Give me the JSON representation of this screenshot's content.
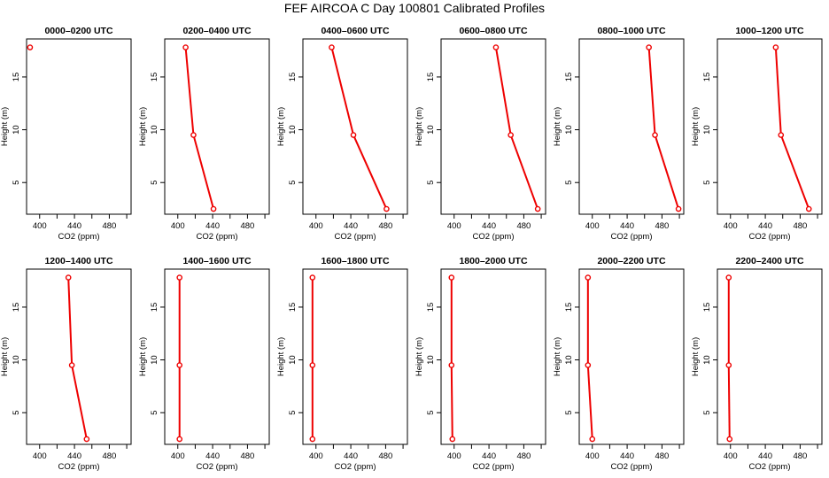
{
  "chart_data": {
    "type": "line",
    "title": "FEF AIRCOA C  Day 100801  Calibrated Profiles",
    "xlabel": "CO2 (ppm)",
    "ylabel": "Height (m)",
    "xlim": [
      385,
      505
    ],
    "ylim": [
      2,
      18.6
    ],
    "xticks": [
      400,
      440,
      480
    ],
    "yticks": [
      5,
      10,
      15
    ],
    "marker_color": "#ee0000",
    "line_color": "#ee0000",
    "heights": [
      17.8,
      9.5,
      2.5
    ],
    "panels": [
      {
        "title": "0000–0200 UTC",
        "co2": [
          389,
          null,
          null
        ]
      },
      {
        "title": "0200–0400 UTC",
        "co2": [
          409,
          418,
          441
        ]
      },
      {
        "title": "0400–0600 UTC",
        "co2": [
          418,
          443,
          481
        ]
      },
      {
        "title": "0600–0800 UTC",
        "co2": [
          448,
          465,
          496
        ]
      },
      {
        "title": "0800–1000 UTC",
        "co2": [
          465,
          472,
          499
        ]
      },
      {
        "title": "1000–1200 UTC",
        "co2": [
          452,
          458,
          490
        ]
      },
      {
        "title": "1200–1400 UTC",
        "co2": [
          433,
          437,
          454
        ]
      },
      {
        "title": "1400–1600 UTC",
        "co2": [
          402,
          402,
          402
        ]
      },
      {
        "title": "1600–1800 UTC",
        "co2": [
          396,
          396,
          396
        ]
      },
      {
        "title": "1800–2000 UTC",
        "co2": [
          397,
          397,
          398
        ]
      },
      {
        "title": "2000–2200 UTC",
        "co2": [
          395,
          395,
          400
        ]
      },
      {
        "title": "2200–2400 UTC",
        "co2": [
          398,
          398,
          399
        ]
      }
    ]
  }
}
